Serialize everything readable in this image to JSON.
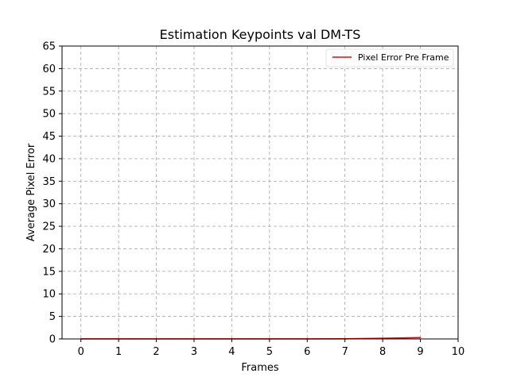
{
  "chart_data": {
    "type": "line",
    "title": "Estimation Keypoints val DM-TS",
    "xlabel": "Frames",
    "ylabel": "Average Pixel Error",
    "xlim": [
      -0.5,
      10
    ],
    "ylim": [
      0,
      65
    ],
    "xticks": [
      "0",
      "1",
      "2",
      "3",
      "4",
      "5",
      "6",
      "7",
      "8",
      "9",
      "10"
    ],
    "yticks": [
      "0",
      "5",
      "10",
      "15",
      "20",
      "25",
      "30",
      "35",
      "40",
      "45",
      "50",
      "55",
      "60",
      "65"
    ],
    "grid": true,
    "legend_position": "top-right",
    "series": [
      {
        "name": "Pixel Error Pre Frame",
        "color": "#ff0000",
        "x": [
          0,
          1,
          2,
          3,
          4,
          5,
          6,
          7,
          8,
          9
        ],
        "y": [
          0.02,
          0.02,
          0.02,
          0.02,
          0.02,
          0.02,
          0.02,
          0.03,
          0.15,
          0.3
        ]
      }
    ]
  }
}
